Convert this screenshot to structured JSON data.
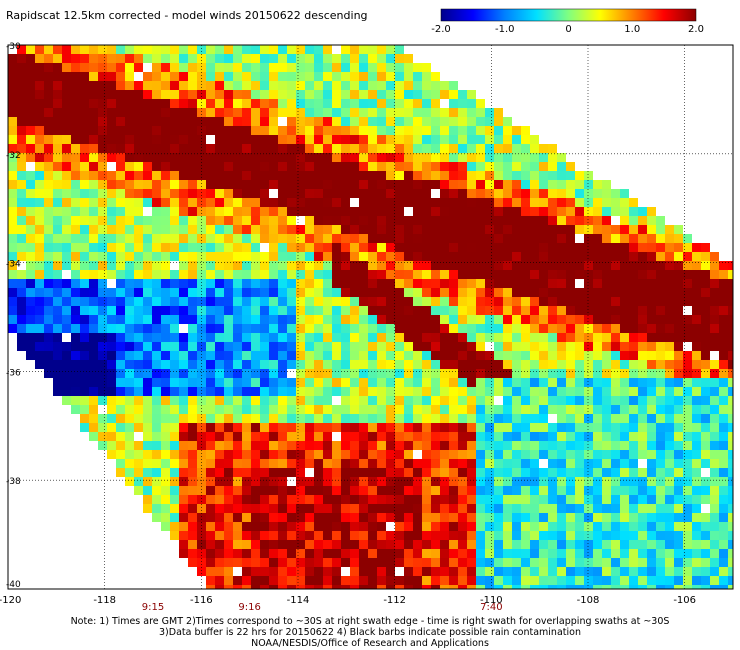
{
  "title": "Rapidscat 12.5km corrected - model winds 20150622 descending",
  "colorbar": {
    "tick_labels": [
      "-2.0",
      "-1.0",
      "0",
      "1.0",
      "2.0"
    ],
    "tick_values": [
      -2,
      -1,
      0,
      1,
      2
    ],
    "range": [
      -2,
      2
    ],
    "colors": [
      "#00008c",
      "#0000ff",
      "#0080ff",
      "#00e0ff",
      "#80ff80",
      "#ffff00",
      "#ff8000",
      "#ff0000",
      "#8c0000"
    ]
  },
  "map": {
    "lon_range": [
      -120,
      -105
    ],
    "lat_range": [
      -40,
      -30
    ],
    "x_tick_labels": [
      "-120",
      "-118",
      "-116",
      "-114",
      "-112",
      "-110",
      "-108",
      "-106"
    ],
    "x_tick_values": [
      -120,
      -118,
      -116,
      -114,
      -112,
      -110,
      -108,
      -106
    ],
    "y_tick_labels": [
      "-30",
      "-32",
      "-34",
      "-36",
      "-38",
      "-40"
    ],
    "y_tick_values": [
      -30,
      -32,
      -34,
      -36,
      -38,
      -40
    ],
    "gridlines": true,
    "swath_times": [
      {
        "label": "9:15",
        "lon": -117
      },
      {
        "label": "9:16",
        "lon": -115
      },
      {
        "label": "7:40",
        "lon": -110
      }
    ],
    "time_color": "#8b0000",
    "missing_color": "#ffffff"
  },
  "notes": {
    "line1": "Note: 1) Times are GMT 2)Times correspond to ~30S at right swath edge - time is right swath for overlapping swaths at ~30S",
    "line2": "3)Data buffer is 22 hrs for 20150622 4) Black barbs indicate possible rain contamination",
    "line3": "NOAA/NESDIS/Office of Research and Applications"
  }
}
